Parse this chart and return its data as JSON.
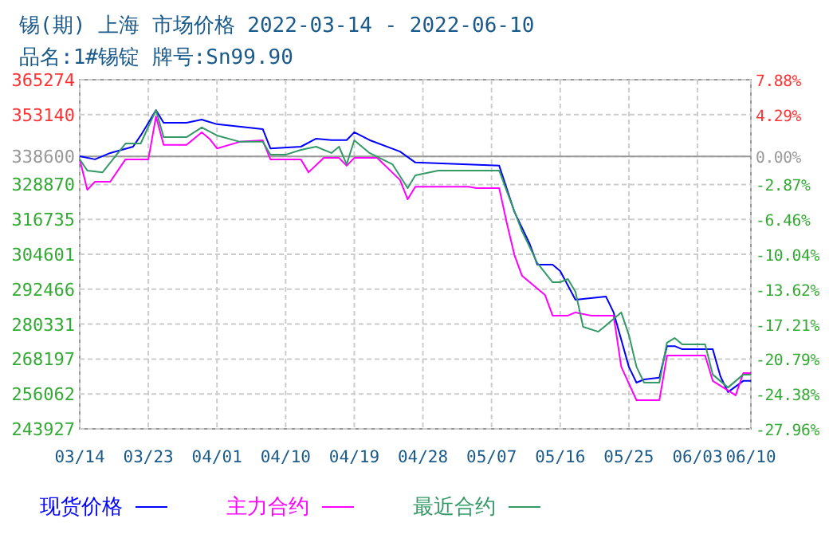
{
  "chart_data": {
    "type": "line",
    "title": "锡(期) 上海 市场价格 2022-03-14 - 2022-06-10",
    "subtitle": "品名:1#锡锭 牌号:Sn99.90",
    "xlim": [
      "2022-03-14",
      "2022-06-10"
    ],
    "xticks": [
      {
        "value": "2022-03-14",
        "label": "03/14"
      },
      {
        "value": "2022-03-23",
        "label": "03/23"
      },
      {
        "value": "2022-04-01",
        "label": "04/01"
      },
      {
        "value": "2022-04-10",
        "label": "04/10"
      },
      {
        "value": "2022-04-19",
        "label": "04/19"
      },
      {
        "value": "2022-04-28",
        "label": "04/28"
      },
      {
        "value": "2022-05-07",
        "label": "05/07"
      },
      {
        "value": "2022-05-16",
        "label": "05/16"
      },
      {
        "value": "2022-05-25",
        "label": "05/25"
      },
      {
        "value": "2022-06-03",
        "label": "06/03"
      },
      {
        "value": "2022-06-10",
        "label": "06/10"
      }
    ],
    "ylim": [
      243927,
      365274
    ],
    "yticks": [
      243927,
      256062,
      268197,
      280331,
      292466,
      304601,
      316735,
      328870,
      338600,
      353140,
      365274
    ],
    "y2lim": [
      -27.96,
      7.88
    ],
    "y2ticks": [
      {
        "value": -27.96,
        "label": "-27.96%"
      },
      {
        "value": -24.38,
        "label": "-24.38%"
      },
      {
        "value": -20.79,
        "label": "-20.79%"
      },
      {
        "value": -17.21,
        "label": "-17.21%"
      },
      {
        "value": -13.62,
        "label": "-13.62%"
      },
      {
        "value": -10.04,
        "label": "-10.04%"
      },
      {
        "value": -6.46,
        "label": "-6.46%"
      },
      {
        "value": -2.87,
        "label": "-2.87%"
      },
      {
        "value": 0,
        "label": "0.00%"
      },
      {
        "value": 4.29,
        "label": "4.29%"
      },
      {
        "value": 7.88,
        "label": "7.88%"
      }
    ],
    "ref_lines": [
      {
        "axis": "y",
        "value": 338600,
        "color": "#999999",
        "line_style": "solid"
      }
    ],
    "grid": true,
    "legend": "bottom",
    "marker": "none",
    "line_style": "solid",
    "series": [
      {
        "name": "现货价格",
        "color": "#0000ff",
        "x": [
          "2022-03-14",
          "2022-03-16",
          "2022-03-18",
          "2022-03-21",
          "2022-03-22",
          "2022-03-24",
          "2022-03-25",
          "2022-03-28",
          "2022-03-30",
          "2022-04-01",
          "2022-04-07",
          "2022-04-08",
          "2022-04-12",
          "2022-04-14",
          "2022-04-16",
          "2022-04-18",
          "2022-04-19",
          "2022-04-21",
          "2022-04-25",
          "2022-04-27",
          "2022-05-08",
          "2022-05-10",
          "2022-05-12",
          "2022-05-13",
          "2022-05-15",
          "2022-05-16",
          "2022-05-18",
          "2022-05-22",
          "2022-05-23",
          "2022-05-25",
          "2022-05-26",
          "2022-05-27",
          "2022-05-29",
          "2022-05-30",
          "2022-05-31",
          "2022-06-01",
          "2022-06-05",
          "2022-06-06",
          "2022-06-07",
          "2022-06-09",
          "2022-06-10"
        ],
        "values": [
          338700,
          337600,
          339800,
          342000,
          345900,
          354700,
          350300,
          350300,
          351400,
          349800,
          348100,
          341400,
          342000,
          344800,
          344300,
          344300,
          347000,
          344300,
          340300,
          336500,
          335400,
          319300,
          308200,
          301000,
          301000,
          298800,
          288800,
          289900,
          284400,
          265500,
          260000,
          261100,
          261700,
          272700,
          272700,
          271600,
          271600,
          262200,
          256700,
          260600,
          260600
        ]
      },
      {
        "name": "主力合约",
        "color": "#ff00ff",
        "x": [
          "2022-03-14",
          "2022-03-15",
          "2022-03-16",
          "2022-03-18",
          "2022-03-20",
          "2022-03-23",
          "2022-03-24",
          "2022-03-25",
          "2022-03-28",
          "2022-03-30",
          "2022-03-31",
          "2022-04-01",
          "2022-04-04",
          "2022-04-07",
          "2022-04-08",
          "2022-04-12",
          "2022-04-13",
          "2022-04-15",
          "2022-04-17",
          "2022-04-18",
          "2022-04-19",
          "2022-04-22",
          "2022-04-25",
          "2022-04-26",
          "2022-04-27",
          "2022-05-04",
          "2022-05-05",
          "2022-05-08",
          "2022-05-09",
          "2022-05-10",
          "2022-05-11",
          "2022-05-14",
          "2022-05-15",
          "2022-05-17",
          "2022-05-18",
          "2022-05-20",
          "2022-05-23",
          "2022-05-24",
          "2022-05-26",
          "2022-05-29",
          "2022-05-30",
          "2022-06-04",
          "2022-06-05",
          "2022-06-08",
          "2022-06-09",
          "2022-06-10"
        ],
        "values": [
          337600,
          327000,
          329800,
          329800,
          337600,
          337600,
          352500,
          342600,
          342600,
          347000,
          344800,
          341400,
          343700,
          344200,
          337600,
          337600,
          333100,
          338100,
          338100,
          335400,
          338100,
          338100,
          330400,
          323700,
          328100,
          328100,
          327600,
          327600,
          315400,
          304300,
          297100,
          290500,
          283300,
          283300,
          284400,
          283300,
          283300,
          265500,
          253900,
          253900,
          269400,
          269400,
          260600,
          255600,
          263300,
          263300
        ]
      },
      {
        "name": "最近合约",
        "color": "#339966",
        "x": [
          "2022-03-14",
          "2022-03-15",
          "2022-03-17",
          "2022-03-20",
          "2022-03-22",
          "2022-03-24",
          "2022-03-25",
          "2022-03-28",
          "2022-03-30",
          "2022-04-01",
          "2022-04-04",
          "2022-04-07",
          "2022-04-08",
          "2022-04-10",
          "2022-04-12",
          "2022-04-14",
          "2022-04-16",
          "2022-04-17",
          "2022-04-18",
          "2022-04-19",
          "2022-04-21",
          "2022-04-24",
          "2022-04-26",
          "2022-04-27",
          "2022-04-30",
          "2022-05-08",
          "2022-05-09",
          "2022-05-11",
          "2022-05-13",
          "2022-05-15",
          "2022-05-16",
          "2022-05-17",
          "2022-05-18",
          "2022-05-19",
          "2022-05-21",
          "2022-05-22",
          "2022-05-24",
          "2022-05-25",
          "2022-05-26",
          "2022-05-27",
          "2022-05-29",
          "2022-05-30",
          "2022-05-31",
          "2022-06-01",
          "2022-06-04",
          "2022-06-05",
          "2022-06-07",
          "2022-06-09",
          "2022-06-10"
        ],
        "values": [
          337600,
          333700,
          333100,
          343100,
          343100,
          354700,
          345300,
          345300,
          348700,
          345900,
          343700,
          343700,
          339200,
          339200,
          340900,
          342000,
          339800,
          342000,
          335900,
          344200,
          339800,
          335900,
          327600,
          332000,
          333700,
          333700,
          326500,
          312600,
          301600,
          294900,
          294900,
          296000,
          291600,
          279400,
          277700,
          279900,
          284400,
          276600,
          265500,
          260000,
          260000,
          273900,
          275500,
          273300,
          273300,
          262800,
          258300,
          262800,
          262800
        ]
      }
    ]
  }
}
